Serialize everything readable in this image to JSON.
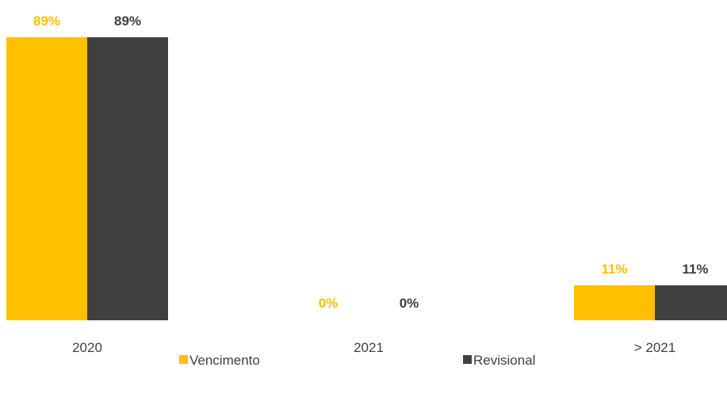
{
  "chart_data": {
    "type": "bar",
    "categories": [
      "2020",
      "2021",
      "> 2021"
    ],
    "series": [
      {
        "name": "Vencimento",
        "values": [
          89,
          0,
          11
        ],
        "labels": [
          "89%",
          "0%",
          "11%"
        ]
      },
      {
        "name": "Revisional",
        "values": [
          89,
          0,
          11
        ],
        "labels": [
          "89%",
          "0%",
          "11%"
        ]
      }
    ],
    "ylim": [
      0,
      89
    ],
    "grid": false,
    "legend_position": "bottom",
    "colors": {
      "Vencimento": "#FFC000",
      "Revisional": "#404040"
    },
    "label_colors": {
      "Vencimento": "#FFC000",
      "Revisional": "#404040"
    }
  }
}
